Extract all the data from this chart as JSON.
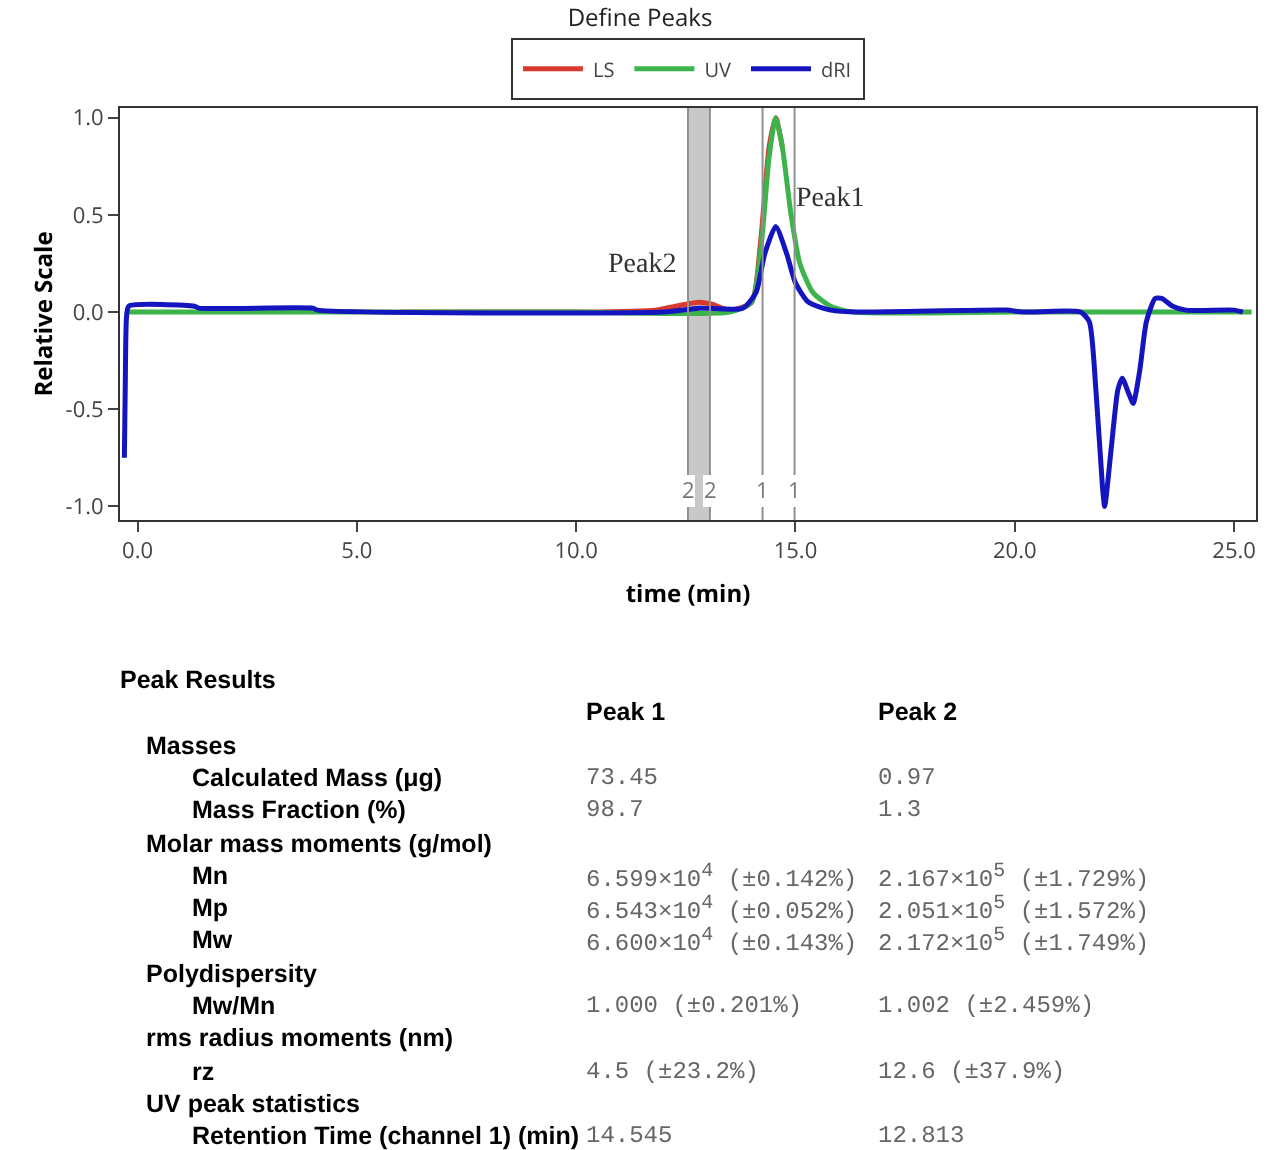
{
  "chart_data": {
    "type": "line",
    "title": "Define Peaks",
    "xlabel": "time (min)",
    "ylabel": "Relative Scale",
    "xlim": [
      -0.4,
      25.5
    ],
    "xticks": [
      {
        "value": 0,
        "label": "0.0"
      },
      {
        "value": 5,
        "label": "5.0"
      },
      {
        "value": 10,
        "label": "10.0"
      },
      {
        "value": 15,
        "label": "15.0"
      },
      {
        "value": 20,
        "label": "20.0"
      },
      {
        "value": 25,
        "label": "25.0"
      }
    ],
    "ylim": [
      -1.07,
      1.05
    ],
    "yticks": [
      {
        "value": -1,
        "label": "-1.0"
      },
      {
        "value": -0.5,
        "label": "-0.5"
      },
      {
        "value": 0,
        "label": "0.0"
      },
      {
        "value": 0.5,
        "label": "0.5"
      },
      {
        "value": 1,
        "label": "1.0"
      }
    ],
    "grid": false,
    "legend": "top",
    "line_style": "solid",
    "series": [
      {
        "name": "LS",
        "color": "#d83a2e",
        "x": [
          6,
          10,
          11.8,
          12.5,
          12.8,
          13.1,
          13.5,
          14.0,
          14.2,
          14.4,
          14.55,
          14.7
        ],
        "values": [
          0,
          0,
          0.01,
          0.04,
          0.05,
          0.04,
          0.01,
          0.05,
          0.35,
          0.85,
          1.0,
          0.85
        ]
      },
      {
        "name": "UV",
        "color": "#3cb44b",
        "x": [
          -0.2,
          2,
          6,
          10,
          13.5,
          14.0,
          14.2,
          14.4,
          14.55,
          14.7,
          14.9,
          15.1,
          15.4,
          15.8,
          16.3,
          20,
          25.4
        ],
        "values": [
          0,
          0,
          0,
          0,
          0,
          0.05,
          0.3,
          0.8,
          1.0,
          0.85,
          0.5,
          0.25,
          0.1,
          0.03,
          0,
          0,
          0
        ]
      },
      {
        "name": "dRI",
        "color": "#1515c0",
        "x": [
          -0.3,
          -0.28,
          -0.25,
          -0.2,
          1.3,
          1.4,
          4,
          4.1,
          12,
          12.8,
          13.8,
          14.1,
          14.3,
          14.55,
          14.8,
          15.0,
          15.3,
          15.8,
          16.5,
          19.8,
          20.2,
          21.5,
          21.7,
          21.85,
          22.0,
          22.05,
          22.2,
          22.35,
          22.45,
          22.6,
          22.7,
          22.85,
          23.0,
          23.2,
          23.35,
          23.6,
          23.9,
          25,
          25.2
        ],
        "values": [
          -0.75,
          -0.38,
          -0.02,
          0.03,
          0.03,
          0.02,
          0.02,
          0.01,
          0,
          0.02,
          0.02,
          0.1,
          0.3,
          0.44,
          0.3,
          0.15,
          0.05,
          0.01,
          0,
          0.01,
          0,
          0,
          -0.05,
          -0.4,
          -0.9,
          -1.0,
          -0.7,
          -0.4,
          -0.34,
          -0.42,
          -0.47,
          -0.3,
          -0.05,
          0.07,
          0.07,
          0.03,
          0.01,
          0.01,
          0
        ]
      }
    ],
    "bands": [
      {
        "axis": "x",
        "from": 12.55,
        "to": 13.05,
        "color": "#c8c8c8"
      }
    ],
    "ref_lines": [
      {
        "axis": "x",
        "value": 14.25,
        "color": "#909090"
      },
      {
        "axis": "x",
        "value": 14.98,
        "color": "#909090"
      }
    ],
    "annotations": [
      {
        "text": "2",
        "x": 12.55,
        "y": -0.92
      },
      {
        "text": "2",
        "x": 13.05,
        "y": -0.92
      },
      {
        "text": "1",
        "x": 14.25,
        "y": -0.92
      },
      {
        "text": "1",
        "x": 14.98,
        "y": -0.92
      },
      "Peak1",
      "Peak2",
      "Peak Results",
      "Peak 1",
      "Peak 2",
      "Masses",
      "Calculated Mass (μg)",
      "73.45",
      "0.97",
      "Mass Fraction (%)",
      "98.7",
      "1.3",
      "Molar mass moments (g/mol)",
      "Mn",
      "6.599×10$^{4}$ (±0.142%)",
      "2.167×10$^{5}$ (±1.729%)",
      "Mp",
      "6.543×10$^{4}$ (±0.052%)",
      "2.051×10$^{5}$ (±1.572%)",
      "Mw",
      "6.600×10$^{4}$ (±0.143%)",
      "2.172×10$^{5}$ (±1.749%)",
      "Polydispersity",
      "Mw/Mn",
      "1.000 (±0.201%)",
      "1.002 (±2.459%)",
      "rms radius moments (nm)",
      "rz",
      "4.5 (±23.2%)",
      "12.6 (±37.9%)",
      "UV peak statistics",
      "Retention Time (channel 1) (min)",
      "14.545",
      "12.813"
    ]
  }
}
